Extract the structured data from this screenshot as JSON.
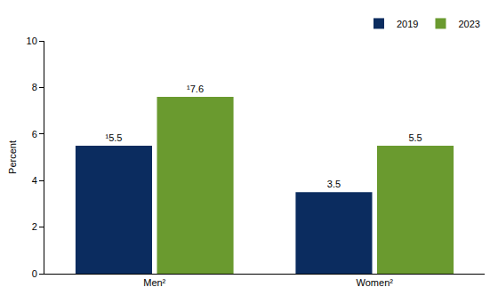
{
  "chart_data": {
    "type": "bar",
    "y_label": "Percent",
    "categories": [
      "Men²",
      "Women²"
    ],
    "series": [
      {
        "name": "2019",
        "color": "#0b2c5f",
        "values": [
          5.5,
          3.5
        ],
        "value_labels": [
          "¹5.5",
          "3.5"
        ]
      },
      {
        "name": "2023",
        "color": "#6a9a2f",
        "values": [
          7.6,
          5.5
        ],
        "value_labels": [
          "¹7.6",
          "5.5"
        ]
      }
    ],
    "ylim": [
      0,
      10
    ],
    "yticks": [
      0,
      2,
      4,
      6,
      8,
      10
    ],
    "grid": false,
    "legend": "top right",
    "data_labels": true
  }
}
